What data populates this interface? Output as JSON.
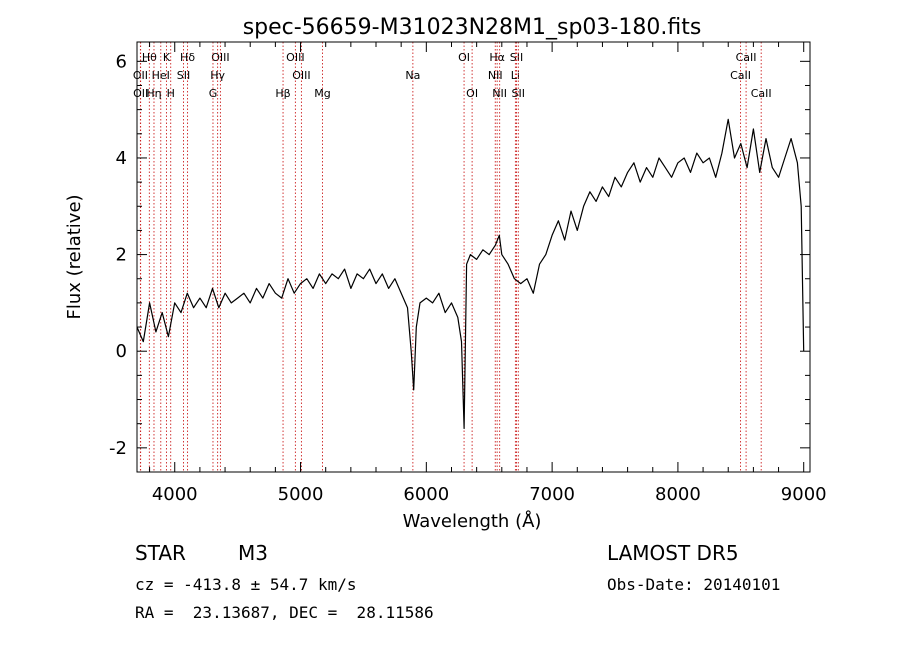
{
  "chart_data": {
    "type": "line",
    "title": "spec-56659-M31023N28M1_sp03-180.fits",
    "xlabel": "Wavelength (Å)",
    "ylabel": "Flux (relative)",
    "xlim": [
      3700,
      9050
    ],
    "ylim": [
      -2.5,
      6.4
    ],
    "x_ticks": [
      4000,
      5000,
      6000,
      7000,
      8000,
      9000
    ],
    "y_ticks": [
      -2,
      0,
      2,
      4,
      6
    ],
    "grid": false,
    "line_color": "#000000",
    "marker_color": "#cc2222",
    "spectral_lines": [
      {
        "label": "Hθ",
        "wavelength": 3798,
        "row": 0
      },
      {
        "label": "K",
        "wavelength": 3934,
        "row": 0
      },
      {
        "label": "Hδ",
        "wavelength": 4102,
        "row": 0
      },
      {
        "label": "OIII",
        "wavelength": 4363,
        "row": 0
      },
      {
        "label": "OIII",
        "wavelength": 4959,
        "row": 0
      },
      {
        "label": "OI",
        "wavelength": 6300,
        "row": 0
      },
      {
        "label": "Hα",
        "wavelength": 6563,
        "row": 0
      },
      {
        "label": "SII",
        "wavelength": 6717,
        "row": 0
      },
      {
        "label": "CaII",
        "wavelength": 8542,
        "row": 0
      },
      {
        "label": "OII",
        "wavelength": 3727,
        "row": 1
      },
      {
        "label": "HeI",
        "wavelength": 3889,
        "row": 1
      },
      {
        "label": "SII",
        "wavelength": 4070,
        "row": 1
      },
      {
        "label": "Hγ",
        "wavelength": 4341,
        "row": 1
      },
      {
        "label": "OIII",
        "wavelength": 5007,
        "row": 1
      },
      {
        "label": "Na",
        "wavelength": 5893,
        "row": 1
      },
      {
        "label": "NII",
        "wavelength": 6548,
        "row": 1
      },
      {
        "label": "Li",
        "wavelength": 6708,
        "row": 1
      },
      {
        "label": "CaII",
        "wavelength": 8498,
        "row": 1
      },
      {
        "label": "OII",
        "wavelength": 3729,
        "row": 2
      },
      {
        "label": "Hη",
        "wavelength": 3835,
        "row": 2
      },
      {
        "label": "H",
        "wavelength": 3968,
        "row": 2
      },
      {
        "label": "G",
        "wavelength": 4304,
        "row": 2
      },
      {
        "label": "Hβ",
        "wavelength": 4861,
        "row": 2
      },
      {
        "label": "Mg",
        "wavelength": 5175,
        "row": 2
      },
      {
        "label": "OI",
        "wavelength": 6364,
        "row": 2
      },
      {
        "label": "NII",
        "wavelength": 6583,
        "row": 2
      },
      {
        "label": "SII",
        "wavelength": 6731,
        "row": 2
      },
      {
        "label": "CaII",
        "wavelength": 8662,
        "row": 2
      }
    ],
    "series": [
      {
        "x": [
          3700,
          3750,
          3800,
          3850,
          3900,
          3950,
          4000,
          4050,
          4100,
          4150,
          4200,
          4250,
          4300,
          4350,
          4400,
          4450,
          4500,
          4550,
          4600,
          4650,
          4700,
          4750,
          4800,
          4850,
          4900,
          4950,
          5000,
          5050,
          5100,
          5150,
          5200,
          5250,
          5300,
          5350,
          5400,
          5450,
          5500,
          5550,
          5600,
          5650,
          5700,
          5750,
          5800,
          5850,
          5880,
          5900,
          5920,
          5950,
          6000,
          6050,
          6100,
          6150,
          6200,
          6250,
          6280,
          6300,
          6320,
          6350,
          6400,
          6450,
          6500,
          6550,
          6580,
          6600,
          6650,
          6700,
          6750,
          6800,
          6850,
          6900,
          6950,
          7000,
          7050,
          7100,
          7150,
          7200,
          7250,
          7300,
          7350,
          7400,
          7450,
          7500,
          7550,
          7600,
          7650,
          7700,
          7750,
          7800,
          7850,
          7900,
          7950,
          8000,
          8050,
          8100,
          8150,
          8200,
          8250,
          8300,
          8350,
          8400,
          8450,
          8500,
          8550,
          8600,
          8650,
          8700,
          8750,
          8800,
          8850,
          8900,
          8950,
          8980,
          9000
        ],
        "y": [
          0.5,
          0.2,
          1.0,
          0.4,
          0.8,
          0.3,
          1.0,
          0.8,
          1.2,
          0.9,
          1.1,
          0.9,
          1.3,
          0.9,
          1.2,
          1.0,
          1.1,
          1.2,
          1.0,
          1.3,
          1.1,
          1.4,
          1.2,
          1.1,
          1.5,
          1.2,
          1.4,
          1.5,
          1.3,
          1.6,
          1.4,
          1.6,
          1.5,
          1.7,
          1.3,
          1.6,
          1.5,
          1.7,
          1.4,
          1.6,
          1.3,
          1.5,
          1.2,
          0.9,
          0.0,
          -0.8,
          0.5,
          1.0,
          1.1,
          1.0,
          1.2,
          0.8,
          1.0,
          0.7,
          0.2,
          -1.6,
          1.8,
          2.0,
          1.9,
          2.1,
          2.0,
          2.2,
          2.4,
          2.0,
          1.8,
          1.5,
          1.4,
          1.5,
          1.2,
          1.8,
          2.0,
          2.4,
          2.7,
          2.3,
          2.9,
          2.5,
          3.0,
          3.3,
          3.1,
          3.4,
          3.2,
          3.6,
          3.4,
          3.7,
          3.9,
          3.5,
          3.8,
          3.6,
          4.0,
          3.8,
          3.6,
          3.9,
          4.0,
          3.7,
          4.1,
          3.9,
          4.0,
          3.6,
          4.1,
          4.8,
          4.0,
          4.3,
          3.8,
          4.6,
          3.7,
          4.4,
          3.8,
          3.6,
          4.0,
          4.4,
          3.9,
          3.0,
          0.0
        ]
      }
    ]
  },
  "info": {
    "object_class": "STAR",
    "subclass": "M3",
    "survey": "LAMOST DR5",
    "cz": "cz = -413.8 ± 54.7 km/s",
    "obs_date": "Obs-Date: 20140101",
    "coords": "RA =  23.13687, DEC =  28.11586"
  }
}
